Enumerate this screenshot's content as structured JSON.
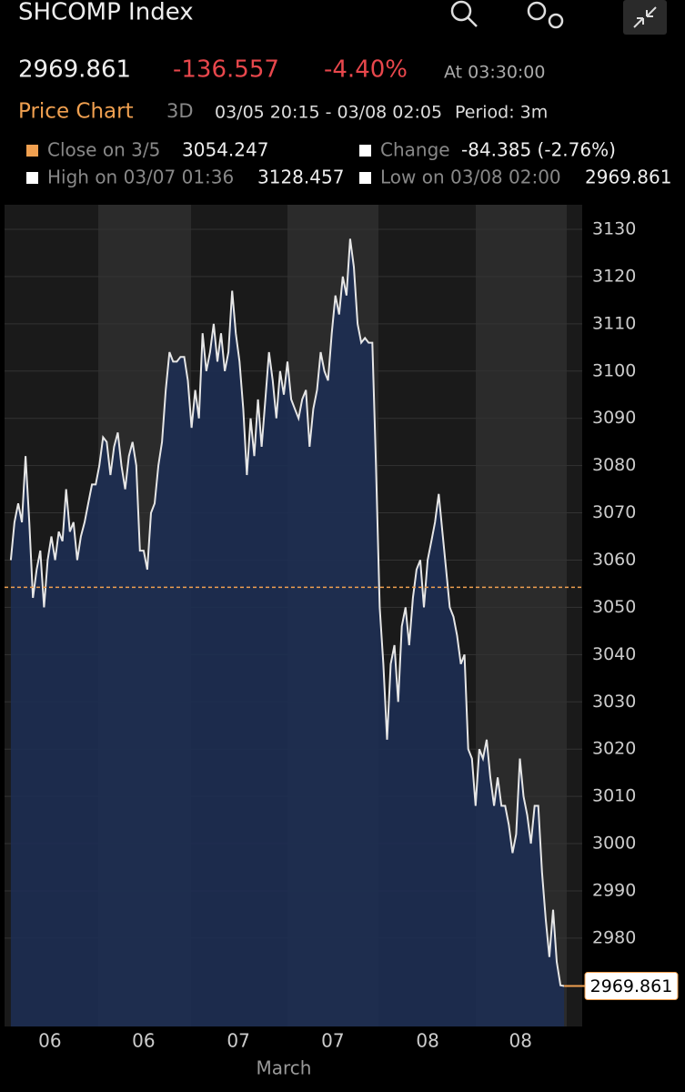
{
  "header": {
    "title": "SHCOMP Index",
    "price": "2969.861",
    "change": "-136.557",
    "change_pct": "-4.40%",
    "time": "At 03:30:00",
    "tab": "Price Chart",
    "range": "3D",
    "dates": "03/05 20:15 - 03/08 02:05",
    "period": "Period: 3m"
  },
  "legend": {
    "close_label": "Close on 3/5",
    "close_value": 3054.247,
    "change_label": "Change",
    "change_value": "-84.385 (-2.76%)",
    "high_label": "High on 03/07 01:36",
    "high_value": 3128.457,
    "low_label": "Low on 03/08 02:00",
    "low_value": 2969.861
  },
  "chart_data": {
    "type": "line",
    "x_axis_label": "March",
    "series": [
      {
        "name": "SHCOMP Index",
        "color": "#e6e6e6",
        "values": [
          3060,
          3068,
          3072,
          3068,
          3082,
          3068,
          3052,
          3058,
          3062,
          3050,
          3060,
          3065,
          3060,
          3066,
          3064,
          3075,
          3066,
          3068,
          3060,
          3065,
          3068,
          3072,
          3076,
          3076,
          3080,
          3086,
          3085,
          3078,
          3084,
          3087,
          3080,
          3075,
          3082,
          3085,
          3080,
          3062,
          3062,
          3058,
          3070,
          3072,
          3080,
          3085,
          3096,
          3104,
          3102,
          3102,
          3103,
          3103,
          3098,
          3088,
          3096,
          3090,
          3108,
          3100,
          3104,
          3110,
          3102,
          3108,
          3100,
          3104,
          3117,
          3108,
          3102,
          3092,
          3078,
          3090,
          3082,
          3094,
          3084,
          3094,
          3104,
          3098,
          3090,
          3100,
          3095,
          3102,
          3094,
          3092,
          3090,
          3094,
          3096,
          3084,
          3092,
          3096,
          3104,
          3100,
          3098,
          3108,
          3116,
          3112,
          3120,
          3116,
          3128,
          3122,
          3110,
          3106,
          3107,
          3106,
          3106,
          3080,
          3050,
          3038,
          3022,
          3038,
          3042,
          3030,
          3046,
          3050,
          3042,
          3052,
          3058,
          3060,
          3050,
          3060,
          3064,
          3068,
          3074,
          3066,
          3058,
          3050,
          3048,
          3044,
          3038,
          3040,
          3020,
          3018,
          3008,
          3020,
          3018,
          3022,
          3014,
          3008,
          3014,
          3008,
          3008,
          3004,
          2998,
          3002,
          3018,
          3010,
          3006,
          3000,
          3008,
          3008,
          2994,
          2984,
          2976,
          2986,
          2975,
          2970,
          2969.861
        ]
      }
    ],
    "xlim": [
      -1.7,
      154.9
    ],
    "xticks": [
      {
        "value": 10.6,
        "label": "06"
      },
      {
        "value": 36,
        "label": "06"
      },
      {
        "value": 61.7,
        "label": "07"
      },
      {
        "value": 87.3,
        "label": "07"
      },
      {
        "value": 113,
        "label": "08"
      },
      {
        "value": 138.2,
        "label": "08"
      }
    ],
    "ylim": [
      2961.3,
      3135.2
    ],
    "yticks": [
      2980,
      2990,
      3000,
      3010,
      3020,
      3030,
      3040,
      3050,
      3060,
      3070,
      3080,
      3090,
      3100,
      3110,
      3120,
      3130
    ],
    "fill_color": "#1d2d52",
    "grid": true
  }
}
